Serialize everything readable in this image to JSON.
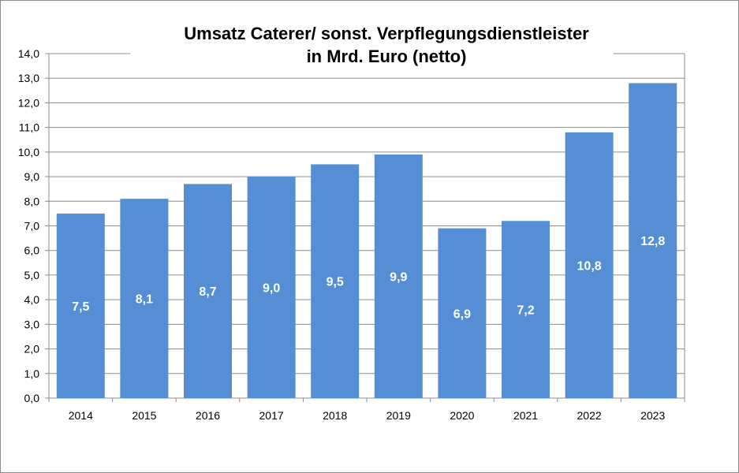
{
  "chart_data": {
    "type": "bar",
    "title_lines": [
      "Umsatz Caterer/ sonst. Verpflegungsdienstleister",
      "in Mrd. Euro (netto)"
    ],
    "categories": [
      "2014",
      "2015",
      "2016",
      "2017",
      "2018",
      "2019",
      "2020",
      "2021",
      "2022",
      "2023"
    ],
    "values": [
      7.5,
      8.1,
      8.7,
      9.0,
      9.5,
      9.9,
      6.9,
      7.2,
      10.8,
      12.8
    ],
    "data_labels": [
      "7,5",
      "8,1",
      "8,7",
      "9,0",
      "9,5",
      "9,9",
      "6,9",
      "7,2",
      "10,8",
      "12,8"
    ],
    "y_ticks": [
      "0,0",
      "1,0",
      "2,0",
      "3,0",
      "4,0",
      "5,0",
      "6,0",
      "7,0",
      "8,0",
      "9,0",
      "10,0",
      "11,0",
      "12,0",
      "13,0",
      "14,0"
    ],
    "ylim": [
      0,
      14
    ],
    "grid": true,
    "legend": "none",
    "colors": {
      "bar": "#558ed5",
      "grid": "#8c8c8c",
      "frame": "#8c8c8c"
    }
  }
}
